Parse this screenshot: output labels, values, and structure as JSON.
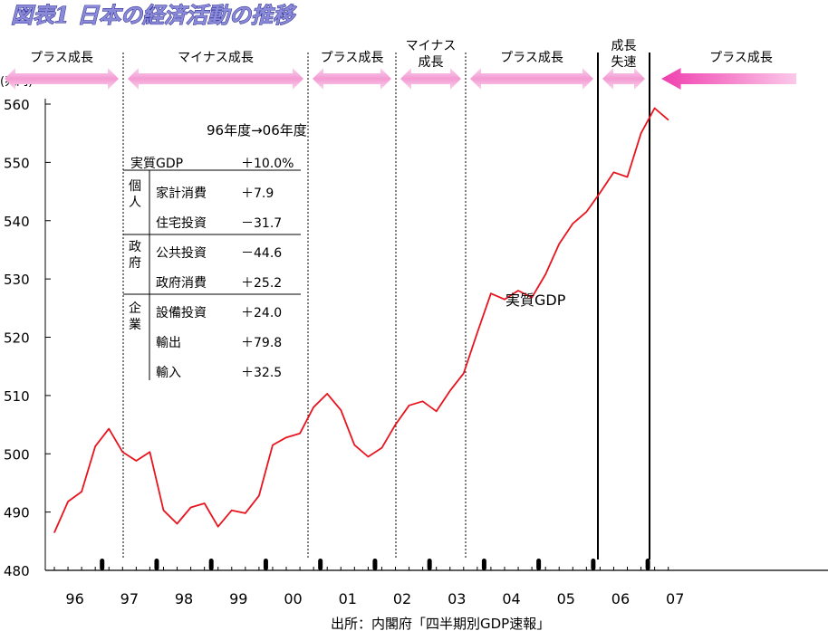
{
  "title": "図表1 日本の経済活動の推移",
  "source": "出所：内閣府「四半期別GDP速報」",
  "colors": {
    "line": "#e8141e",
    "arrow": "#f7a6d8",
    "arrow_strong": "#f25fb6",
    "title_fill": "#8a8ad8",
    "title_stroke": "#1a1a8a"
  },
  "chart_data": {
    "type": "line",
    "title": "図表1 日本の経済活動の推移",
    "ylabel": "(兆円)",
    "ylim": [
      480,
      560
    ],
    "yticks": [
      480,
      490,
      500,
      510,
      520,
      530,
      540,
      550,
      560
    ],
    "ytick_labels": [
      "480",
      "490",
      "500",
      "510",
      "520",
      "530",
      "540",
      "550",
      "560"
    ],
    "xlim": [
      0,
      45
    ],
    "xtick_labels": [
      "96",
      "97",
      "98",
      "99",
      "00",
      "01",
      "02",
      "03",
      "04",
      "05",
      "06",
      "07"
    ],
    "series": [
      {
        "name": "実質GDP",
        "values": [
          486.5,
          491.8,
          493.5,
          501.3,
          504.3,
          500.3,
          498.8,
          500.3,
          490.3,
          488.0,
          490.8,
          491.5,
          487.5,
          490.3,
          489.8,
          492.8,
          501.5,
          502.8,
          503.5,
          508.0,
          510.3,
          507.5,
          501.5,
          499.5,
          501.0,
          505.0,
          508.3,
          509.0,
          507.3,
          510.8,
          513.8,
          520.8,
          527.5,
          526.5,
          528.0,
          526.8,
          530.8,
          536.0,
          539.5,
          541.5,
          544.8,
          548.3,
          547.5,
          555.0,
          559.3,
          557.3
        ]
      }
    ],
    "phases": [
      {
        "label": "プラス成長",
        "direction": "both"
      },
      {
        "label": "マイナス成長",
        "direction": "both"
      },
      {
        "label": "プラス成長",
        "direction": "both"
      },
      {
        "label": "マイナス\n成長",
        "direction": "both"
      },
      {
        "label": "プラス成長",
        "direction": "both"
      },
      {
        "label": "成長\n失速",
        "direction": "both"
      },
      {
        "label": "プラス成長",
        "direction": "left"
      }
    ],
    "annotation": "実質GDP",
    "inset_table": {
      "header": "96年度→06年度",
      "rows": [
        {
          "group": "",
          "item": "実質GDP",
          "value": "＋10.0%"
        },
        {
          "group": "個人",
          "item": "家計消費",
          "value": "＋7.9"
        },
        {
          "group": "個人",
          "item": "住宅投資",
          "value": "－31.7"
        },
        {
          "group": "政府",
          "item": "公共投資",
          "value": "－44.6"
        },
        {
          "group": "政府",
          "item": "政府消費",
          "value": "＋25.2"
        },
        {
          "group": "企業",
          "item": "設備投資",
          "value": "＋24.0"
        },
        {
          "group": "企業",
          "item": "輸出",
          "value": "＋79.8"
        },
        {
          "group": "企業",
          "item": "輸入",
          "value": "＋32.5"
        }
      ],
      "groups": [
        "個人",
        "政府",
        "企業"
      ]
    }
  }
}
